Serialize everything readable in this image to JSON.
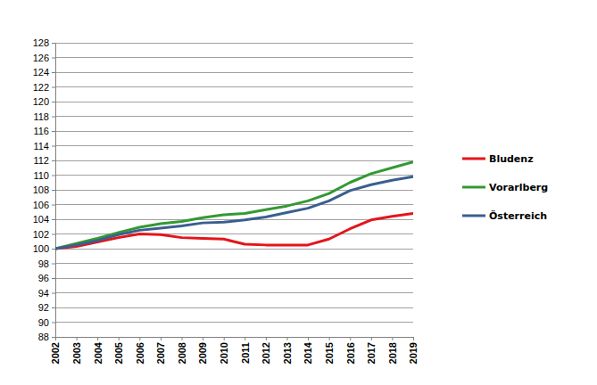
{
  "chart_data": {
    "type": "line",
    "x": [
      2002,
      2003,
      2004,
      2005,
      2006,
      2007,
      2008,
      2009,
      2010,
      2011,
      2012,
      2013,
      2014,
      2015,
      2016,
      2017,
      2018,
      2019
    ],
    "series": [
      {
        "name": "Bludenz",
        "color": "#e4151b",
        "values": [
          100,
          100.3,
          100.9,
          101.5,
          102.0,
          101.9,
          101.5,
          101.4,
          101.3,
          100.6,
          100.5,
          100.5,
          100.5,
          101.3,
          102.7,
          103.9,
          104.4,
          104.8
        ]
      },
      {
        "name": "Vorarlberg",
        "color": "#339933",
        "values": [
          100,
          100.7,
          101.4,
          102.2,
          102.9,
          103.4,
          103.7,
          104.2,
          104.6,
          104.8,
          105.3,
          105.8,
          106.5,
          107.5,
          109.0,
          110.2,
          111.0,
          111.8
        ]
      },
      {
        "name": "Österreich",
        "color": "#3a5f8f",
        "values": [
          100,
          100.5,
          101.1,
          101.9,
          102.5,
          102.8,
          103.1,
          103.5,
          103.6,
          103.9,
          104.3,
          104.9,
          105.5,
          106.5,
          107.9,
          108.7,
          109.3,
          109.8
        ]
      }
    ],
    "xlim": [
      2002,
      2019
    ],
    "xticks": [
      2002,
      2003,
      2004,
      2005,
      2006,
      2007,
      2008,
      2009,
      2010,
      2011,
      2012,
      2013,
      2014,
      2015,
      2016,
      2017,
      2018,
      2019
    ],
    "ylim": [
      88,
      128
    ],
    "yticks": [
      88,
      90,
      92,
      94,
      96,
      98,
      100,
      102,
      104,
      106,
      108,
      110,
      112,
      114,
      116,
      118,
      120,
      122,
      124,
      126,
      128
    ],
    "grid": true,
    "legend": "right"
  }
}
